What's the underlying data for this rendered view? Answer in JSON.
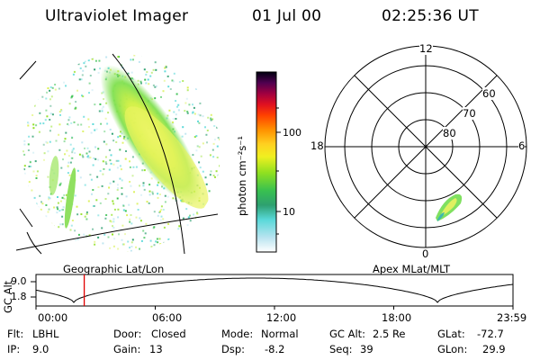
{
  "header": {
    "instrument": "Ultraviolet Imager",
    "date": "01 Jul 00",
    "time": "02:25:36 UT"
  },
  "left_panel": {
    "caption": "Geographic Lat/Lon"
  },
  "colorbar": {
    "unit_label": "photon cm⁻²s⁻¹",
    "ticks": [
      "100",
      "10"
    ],
    "colors": [
      "#ffffff",
      "#b9e4f0",
      "#58d8d8",
      "#2ea070",
      "#38c050",
      "#90e020",
      "#f0f020",
      "#ffb000",
      "#ff6000",
      "#ee1010",
      "#a00040",
      "#500050",
      "#000000"
    ]
  },
  "polar_plot": {
    "caption": "Apex MLat/MLT",
    "mlt_labels": {
      "top": "12",
      "left": "18",
      "right": "6",
      "bottom": "0"
    },
    "lat_labels": [
      "60",
      "70",
      "80"
    ]
  },
  "altitude_strip": {
    "ylabel": "GC Alt",
    "yticks": [
      "9.0",
      "1.8"
    ],
    "xticks": [
      "00:00",
      "06:00",
      "12:00",
      "18:00",
      "23:59"
    ],
    "marker_time": "02:25:36",
    "marker_color": "#e00000"
  },
  "info": {
    "filter": {
      "label": "Flt:",
      "value": "LBHL"
    },
    "ip": {
      "label": "IP:",
      "value": "9.0"
    },
    "door": {
      "label": "Door:",
      "value": "Closed"
    },
    "gain": {
      "label": "Gain:",
      "value": "13"
    },
    "mode": {
      "label": "Mode:",
      "value": "Normal"
    },
    "dsp": {
      "label": "Dsp:",
      "value": "-8.2"
    },
    "gc_alt": {
      "label": "GC Alt:",
      "value": "2.5 Re"
    },
    "seq": {
      "label": "Seq:",
      "value": "39"
    },
    "glat": {
      "label": "GLat:",
      "value": "-72.7"
    },
    "glon": {
      "label": "GLon:",
      "value": "29.9"
    }
  }
}
